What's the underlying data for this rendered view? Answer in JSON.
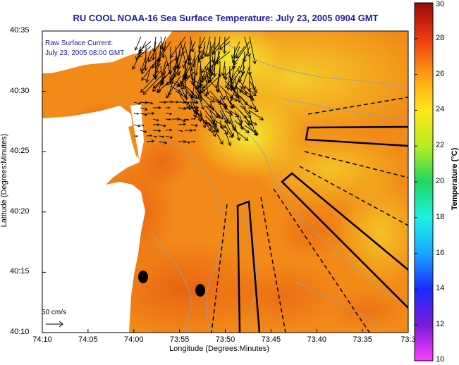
{
  "title": "RU COOL  NOAA-16  Sea Surface Temperature:  July 23, 2005 0904 GMT",
  "annotation": {
    "line1": "Raw Surface Current:",
    "line2": "July 23, 2005 08:00 GMT"
  },
  "scale_label": "50 cm/s",
  "axes": {
    "xlabel": "Longitude (Degrees:Minutes)",
    "ylabel": "Latitude (Degrees:Minutes)",
    "xticks": [
      "74:10",
      "74:05",
      "74:00",
      "73:55",
      "73:50",
      "73:45",
      "73:40",
      "73:35",
      "73:3"
    ],
    "yticks": [
      "40:35",
      "40:30",
      "40:25",
      "40:20",
      "40:15",
      "40:10"
    ]
  },
  "colorbar": {
    "label": "Temperature (°C)",
    "ticks": [
      "30",
      "28",
      "26",
      "24",
      "22",
      "20",
      "18",
      "16",
      "14",
      "12",
      "10"
    ],
    "range": [
      10,
      30
    ]
  },
  "colors": {
    "title": "#1a1aa8",
    "land": "#ffffff",
    "sst_warm": "#f07a16",
    "sst_cool": "#f2e428"
  }
}
